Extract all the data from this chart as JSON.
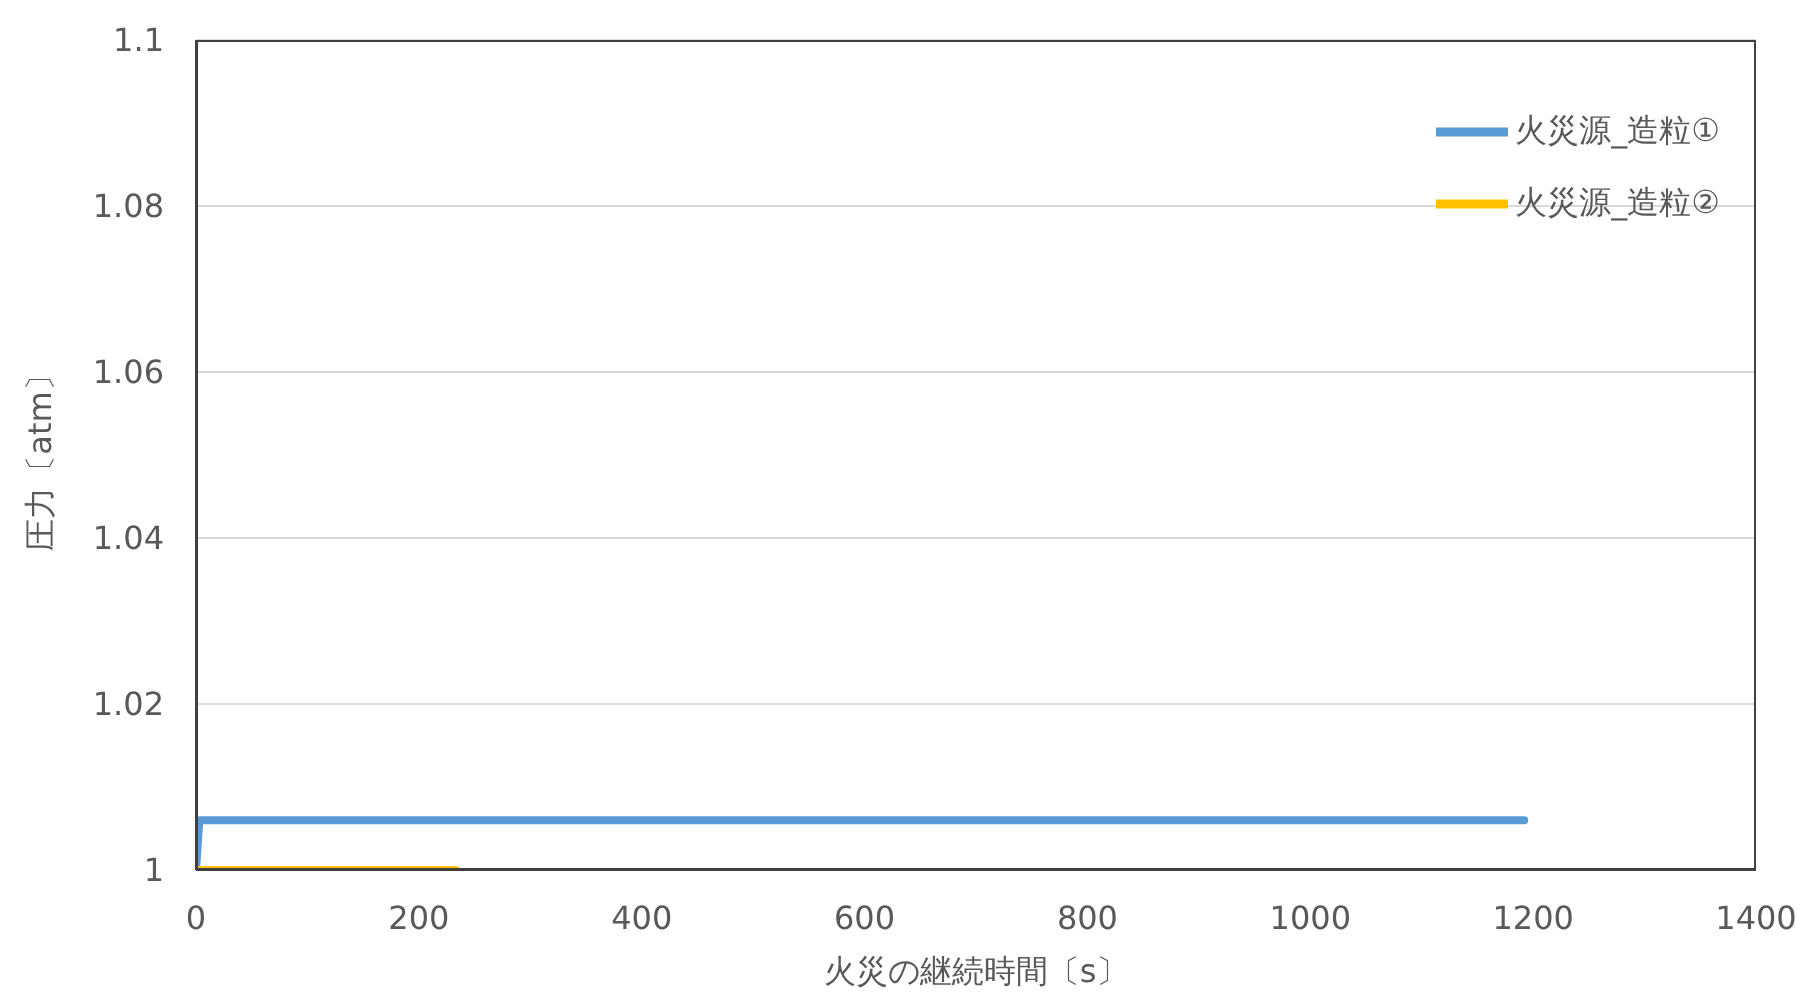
{
  "chart_data": {
    "type": "line",
    "xlabel": "火災の継続時間〔s〕",
    "ylabel": "圧力〔atm〕",
    "xlim": [
      0,
      1400
    ],
    "xticks": [
      0,
      200,
      400,
      600,
      800,
      1000,
      1200,
      1400
    ],
    "ylim": [
      1,
      1.1
    ],
    "yticks": [
      1,
      1.02,
      1.04,
      1.06,
      1.08,
      1.1
    ],
    "grid": "y",
    "legend": "top right",
    "marker": "none",
    "line_style": "solid",
    "series": [
      {
        "name": "火災源_造粒①",
        "color": "#5b9bd5",
        "x": [
          0,
          3,
          1192
        ],
        "values": [
          1,
          1.006,
          1.006
        ]
      },
      {
        "name": "火災源_造粒②",
        "color": "#ffc000",
        "x": [
          0,
          233
        ],
        "values": [
          1,
          1
        ]
      }
    ]
  }
}
